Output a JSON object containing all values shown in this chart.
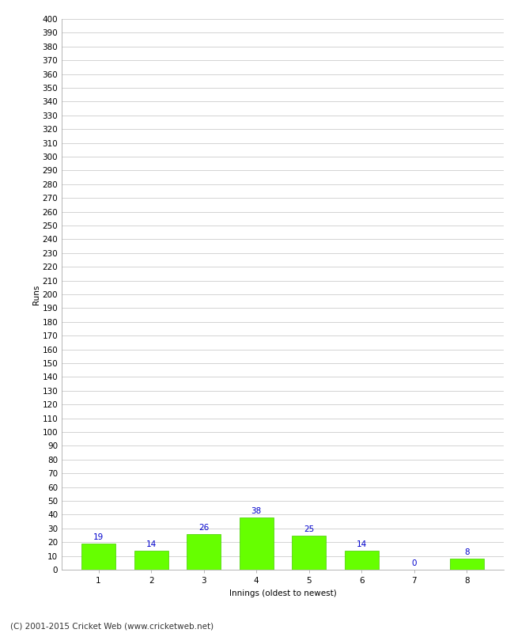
{
  "categories": [
    "1",
    "2",
    "3",
    "4",
    "5",
    "6",
    "7",
    "8"
  ],
  "values": [
    19,
    14,
    26,
    38,
    25,
    14,
    0,
    8
  ],
  "bar_color": "#66ff00",
  "bar_edge_color": "#44cc00",
  "label_color": "#0000cc",
  "xlabel": "Innings (oldest to newest)",
  "ylabel": "Runs",
  "ylim": [
    0,
    400
  ],
  "ytick_step": 10,
  "footer": "(C) 2001-2015 Cricket Web (www.cricketweb.net)",
  "background_color": "#ffffff",
  "grid_color": "#cccccc",
  "label_fontsize": 7.5,
  "axis_fontsize": 7.5,
  "ylabel_fontsize": 7.5,
  "footer_fontsize": 7.5
}
